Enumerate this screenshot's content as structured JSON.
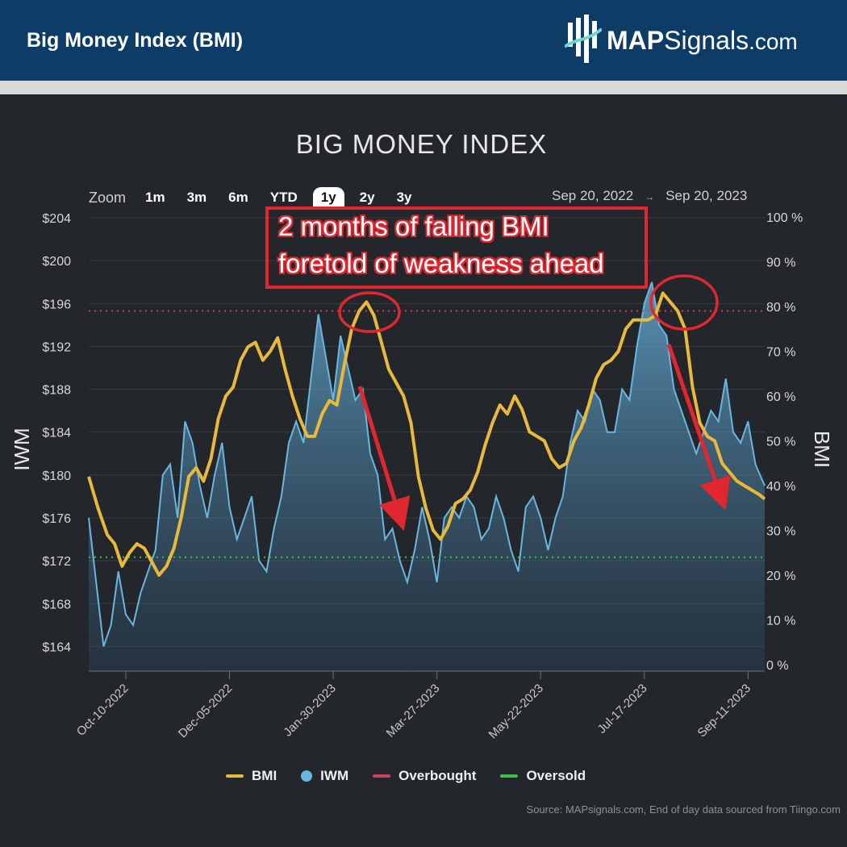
{
  "header": {
    "title": "Big Money Index (BMI)",
    "logo_bold": "MAP",
    "logo_rest": "Signals",
    "logo_suffix": ".com",
    "bg_color": "#0d3c66"
  },
  "zoom": {
    "label": "Zoom",
    "options": [
      "1m",
      "3m",
      "6m",
      "YTD",
      "1y",
      "2y",
      "3y"
    ],
    "selected": "1y"
  },
  "range": {
    "from": "Sep 20, 2022",
    "to": "Sep 20, 2023"
  },
  "annotation": {
    "line1": "2 months of falling BMI",
    "line2": "foretold of weakness ahead",
    "color": "#e0262f"
  },
  "legend": {
    "bmi": "BMI",
    "iwm": "IWM",
    "overbought": "Overbought",
    "oversold": "Oversold"
  },
  "source": "Source: MAPsignals.com, End of day data sourced from Tiingo.com",
  "chart_data": {
    "type": "line",
    "title": "BIG MONEY INDEX",
    "ylabel_left": "IWM",
    "ylabel_right": "BMI",
    "ylim_left": [
      162,
      204
    ],
    "ylim_right": [
      0,
      100
    ],
    "left_ticks": [
      164,
      168,
      172,
      176,
      180,
      184,
      188,
      192,
      196,
      200,
      204
    ],
    "left_tick_labels": [
      "$164",
      "$168",
      "$172",
      "$176",
      "$180",
      "$184",
      "$188",
      "$192",
      "$196",
      "$200",
      "$204"
    ],
    "right_ticks": [
      0,
      10,
      20,
      30,
      40,
      50,
      60,
      70,
      80,
      90,
      100
    ],
    "right_tick_labels": [
      "0 %",
      "10 %",
      "20 %",
      "30 %",
      "40 %",
      "50 %",
      "60 %",
      "70 %",
      "80 %",
      "90 %",
      "100 %"
    ],
    "x_range": [
      "2022-09-20",
      "2023-09-20"
    ],
    "x_ticks": [
      "2022-10-10",
      "2022-12-05",
      "2023-01-30",
      "2023-03-27",
      "2023-05-22",
      "2023-07-17",
      "2023-09-11"
    ],
    "x_tick_labels": [
      "Oct-10-2022",
      "Dec-05-2022",
      "Jan-30-2023",
      "Mar-27-2023",
      "May-22-2023",
      "Jul-17-2023",
      "Sep-11-2023"
    ],
    "overbought": 79,
    "oversold": 24,
    "colors": {
      "bmi": "#e8b93a",
      "iwm": "#6bb6e0",
      "overbought": "#c9435a",
      "oversold": "#3cc04a",
      "arrows": "#e0262f"
    },
    "series": [
      {
        "name": "BMI",
        "axis": "right",
        "x": [
          "2022-09-20",
          "2022-09-25",
          "2022-09-30",
          "2022-10-04",
          "2022-10-08",
          "2022-10-12",
          "2022-10-16",
          "2022-10-20",
          "2022-10-24",
          "2022-10-28",
          "2022-11-01",
          "2022-11-05",
          "2022-11-09",
          "2022-11-13",
          "2022-11-17",
          "2022-11-21",
          "2022-11-25",
          "2022-11-29",
          "2022-12-03",
          "2022-12-07",
          "2022-12-11",
          "2022-12-15",
          "2022-12-19",
          "2022-12-23",
          "2022-12-27",
          "2022-12-31",
          "2023-01-04",
          "2023-01-08",
          "2023-01-12",
          "2023-01-16",
          "2023-01-20",
          "2023-01-24",
          "2023-01-28",
          "2023-02-01",
          "2023-02-05",
          "2023-02-09",
          "2023-02-13",
          "2023-02-17",
          "2023-02-21",
          "2023-02-25",
          "2023-03-01",
          "2023-03-05",
          "2023-03-09",
          "2023-03-13",
          "2023-03-17",
          "2023-03-21",
          "2023-03-25",
          "2023-03-29",
          "2023-04-02",
          "2023-04-06",
          "2023-04-10",
          "2023-04-14",
          "2023-04-18",
          "2023-04-22",
          "2023-04-26",
          "2023-04-30",
          "2023-05-04",
          "2023-05-08",
          "2023-05-12",
          "2023-05-16",
          "2023-05-20",
          "2023-05-24",
          "2023-05-28",
          "2023-06-01",
          "2023-06-05",
          "2023-06-09",
          "2023-06-13",
          "2023-06-17",
          "2023-06-21",
          "2023-06-25",
          "2023-06-29",
          "2023-07-03",
          "2023-07-07",
          "2023-07-11",
          "2023-07-15",
          "2023-07-19",
          "2023-07-23",
          "2023-07-27",
          "2023-07-31",
          "2023-08-04",
          "2023-08-08",
          "2023-08-12",
          "2023-08-16",
          "2023-08-20",
          "2023-08-24",
          "2023-08-28",
          "2023-09-01",
          "2023-09-05",
          "2023-09-09",
          "2023-09-13",
          "2023-09-17",
          "2023-09-20"
        ],
        "values": [
          42,
          35,
          29,
          27,
          22,
          25,
          27,
          26,
          23,
          20,
          22,
          26,
          33,
          42,
          44,
          41,
          46,
          55,
          60,
          62,
          68,
          71,
          72,
          68,
          70,
          73,
          66,
          60,
          55,
          51,
          51,
          56,
          59,
          58,
          67,
          75,
          79,
          81,
          78,
          72,
          66,
          63,
          60,
          54,
          42,
          35,
          30,
          28,
          31,
          36,
          37,
          39,
          43,
          49,
          54,
          58,
          56,
          60,
          57,
          52,
          51,
          50,
          46,
          44,
          45,
          50,
          53,
          58,
          64,
          67,
          68,
          70,
          75,
          77,
          77,
          77,
          78,
          83,
          81,
          79,
          75,
          62,
          54,
          51,
          50,
          45,
          43,
          41,
          40,
          39,
          38,
          37
        ]
      },
      {
        "name": "IWM",
        "axis": "left",
        "x": [
          "2022-09-20",
          "2022-09-24",
          "2022-09-28",
          "2022-10-02",
          "2022-10-06",
          "2022-10-10",
          "2022-10-14",
          "2022-10-18",
          "2022-10-22",
          "2022-10-26",
          "2022-10-30",
          "2022-11-03",
          "2022-11-07",
          "2022-11-11",
          "2022-11-15",
          "2022-11-19",
          "2022-11-23",
          "2022-11-27",
          "2022-12-01",
          "2022-12-05",
          "2022-12-09",
          "2022-12-13",
          "2022-12-17",
          "2022-12-21",
          "2022-12-25",
          "2022-12-29",
          "2023-01-02",
          "2023-01-06",
          "2023-01-10",
          "2023-01-14",
          "2023-01-18",
          "2023-01-22",
          "2023-01-26",
          "2023-01-30",
          "2023-02-03",
          "2023-02-07",
          "2023-02-11",
          "2023-02-15",
          "2023-02-19",
          "2023-02-23",
          "2023-02-27",
          "2023-03-03",
          "2023-03-07",
          "2023-03-11",
          "2023-03-15",
          "2023-03-19",
          "2023-03-23",
          "2023-03-27",
          "2023-03-31",
          "2023-04-04",
          "2023-04-08",
          "2023-04-12",
          "2023-04-16",
          "2023-04-20",
          "2023-04-24",
          "2023-04-28",
          "2023-05-02",
          "2023-05-06",
          "2023-05-10",
          "2023-05-14",
          "2023-05-18",
          "2023-05-22",
          "2023-05-26",
          "2023-05-30",
          "2023-06-03",
          "2023-06-07",
          "2023-06-11",
          "2023-06-15",
          "2023-06-19",
          "2023-06-23",
          "2023-06-27",
          "2023-07-01",
          "2023-07-05",
          "2023-07-09",
          "2023-07-13",
          "2023-07-17",
          "2023-07-21",
          "2023-07-25",
          "2023-07-29",
          "2023-08-02",
          "2023-08-06",
          "2023-08-10",
          "2023-08-14",
          "2023-08-18",
          "2023-08-22",
          "2023-08-26",
          "2023-08-30",
          "2023-09-03",
          "2023-09-07",
          "2023-09-11",
          "2023-09-15",
          "2023-09-20"
        ],
        "values": [
          176,
          170,
          164,
          166,
          171,
          167,
          166,
          169,
          171,
          173,
          180,
          181,
          176,
          185,
          183,
          179,
          176,
          180,
          183,
          177,
          174,
          176,
          178,
          172,
          171,
          175,
          178,
          183,
          185,
          183,
          189,
          195,
          191,
          187,
          193,
          190,
          187,
          188,
          182,
          180,
          174,
          175,
          172,
          170,
          173,
          177,
          174,
          170,
          176,
          177,
          176,
          178,
          177,
          174,
          175,
          178,
          176,
          173,
          171,
          177,
          178,
          176,
          173,
          176,
          178,
          183,
          186,
          185,
          188,
          187,
          184,
          184,
          188,
          187,
          192,
          196,
          198,
          194,
          193,
          188,
          186,
          184,
          182,
          184,
          186,
          185,
          189,
          184,
          183,
          185,
          181,
          179
        ]
      }
    ]
  }
}
